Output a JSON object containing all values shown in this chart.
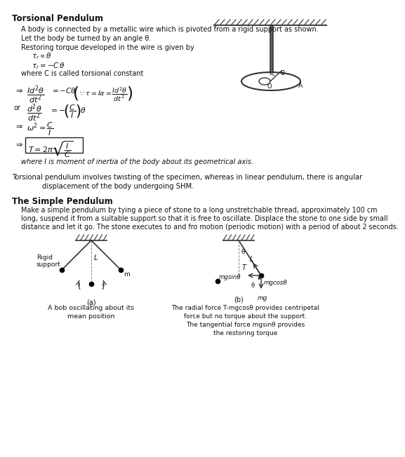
{
  "title1": "Torsional Pendulum",
  "title2": "The Simple Pendulum",
  "bg_color": "#ffffff",
  "body_text1": "A body is connected by a metallic wire which is pivoted from a rigid support as shown.",
  "body_text2": "Let the body be turned by an angle θ.",
  "body_text3": "Restoring torque developed in the wire is given by",
  "where_c": "where C is called torsional constant",
  "footer": "where I is moment of inertia of the body about its geometrical axis.",
  "diff_text1": "Torsional pendulum involves twisting of the specimen, whereas in linear pendulum, there is angular",
  "diff_text2": "displacement of the body undergoing SHM.",
  "simple_pend_desc1": "Make a simple pendulum by tying a piece of stone to a long unstretchable thread, approximately 100 cm",
  "simple_pend_desc2": "long, suspend it from a suitable support so that it is free to oscillate. Displace the stone to one side by small",
  "simple_pend_desc3": "distance and let it go. The stone executes to and fro motion (periodic motion) with a period of about 2 seconds.",
  "caption_a1": "A bob oscillating about its",
  "caption_a2": "mean position",
  "caption_b1": "The radial force T-mgcosθ provides centripetal",
  "caption_b2": "force but no torque about the support.",
  "caption_b3": "The tangential force mgsinθ provides",
  "caption_b4": "the restoring torque"
}
